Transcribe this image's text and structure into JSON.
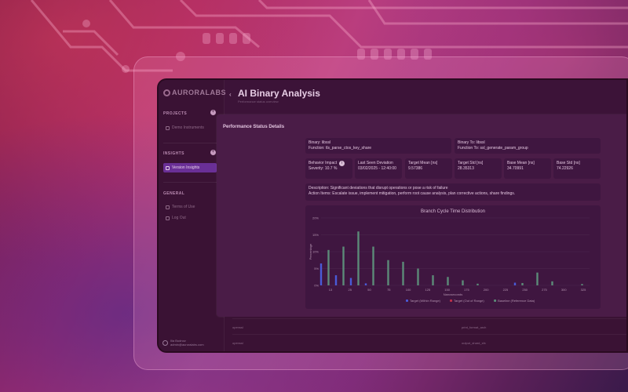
{
  "brand": {
    "logo_text": "AURORALABS",
    "accent": "#6a2f96"
  },
  "sidebar": {
    "projects_label": "PROJECTS",
    "projects_add": "+",
    "project_item": "Demo Instruments",
    "insights_label": "INSIGHTS",
    "insights_add": "+",
    "insights_item": "Version Insights",
    "general_label": "GENERAL",
    "general_items": [
      "Terms of Use",
      "Log Out"
    ],
    "user_name": "Ilia Budnov",
    "user_email": "admin@auroralabs.com"
  },
  "header": {
    "back_icon": "‹",
    "title": "AI Binary Analysis",
    "subtitle": "Performance status overview"
  },
  "panel": {
    "title": "Performance Status Details",
    "binary_from": {
      "binary": "Binary: libssl",
      "function": "Function: tls_parse_ctos_key_share"
    },
    "binary_to": {
      "binary": "Binary To: libssl",
      "function": "Function To: ssl_generate_param_group"
    },
    "metrics": [
      {
        "label": "Behavior Impact",
        "value": "Severity: 10.7 %",
        "info": "i"
      },
      {
        "label": "Last Seen Deviation",
        "value": "03/02/2025 - 12:40:00"
      },
      {
        "label": "Target Mean [ns]",
        "value": "9.57386"
      },
      {
        "label": "Target Std [ns]",
        "value": "28.35313"
      },
      {
        "label": "Base Mean [ns]",
        "value": "34.70991"
      },
      {
        "label": "Base Std [ns]",
        "value": "74.22926"
      }
    ],
    "description": "Description: Significant deviations that disrupt operations or pose a risk of failure",
    "action_items": "Action Items: Escalate issue, implement mitigation, perform root cause analysis, plan corrective actions, share findings."
  },
  "chart_data": {
    "type": "bar",
    "title": "Branch Cycle Time Distribution",
    "xlabel": "Nanoseconds",
    "ylabel": "Percentage",
    "ylim": [
      0,
      20
    ],
    "yticks": [
      "20%",
      "15%",
      "10%",
      "5%",
      "0%"
    ],
    "xticks": [
      "13",
      "25",
      "50",
      "75",
      "100",
      "125",
      "150",
      "175",
      "200",
      "225",
      "250",
      "275",
      "300",
      "325"
    ],
    "series": [
      {
        "name": "Target (Within Range)",
        "color": "#4a5ad8",
        "points": [
          [
            0,
            6.5
          ],
          [
            1,
            3.0
          ],
          [
            2,
            2.2
          ],
          [
            3,
            0.6
          ],
          [
            13,
            0.8
          ]
        ]
      },
      {
        "name": "Target (Out of Range)",
        "color": "#c0304a",
        "points": []
      },
      {
        "name": "Baseline (Reference Data)",
        "color": "#5c8a78",
        "points": [
          [
            0.5,
            10.5
          ],
          [
            1.5,
            11.5
          ],
          [
            2.5,
            16.0
          ],
          [
            3.5,
            11.5
          ],
          [
            4.5,
            7.5
          ],
          [
            5.5,
            7.0
          ],
          [
            6.5,
            5.0
          ],
          [
            7.5,
            3.0
          ],
          [
            8.5,
            2.5
          ],
          [
            9.5,
            1.5
          ],
          [
            10.5,
            0.5
          ],
          [
            13.5,
            0.7
          ],
          [
            14.5,
            3.8
          ],
          [
            15.5,
            1.2
          ],
          [
            17.5,
            0.4
          ]
        ]
      }
    ]
  },
  "table_rows": [
    {
      "col1": "openssl",
      "col2": "print_format_arch"
    },
    {
      "col1": "openssl",
      "col2": "output_shard_sfx"
    }
  ]
}
